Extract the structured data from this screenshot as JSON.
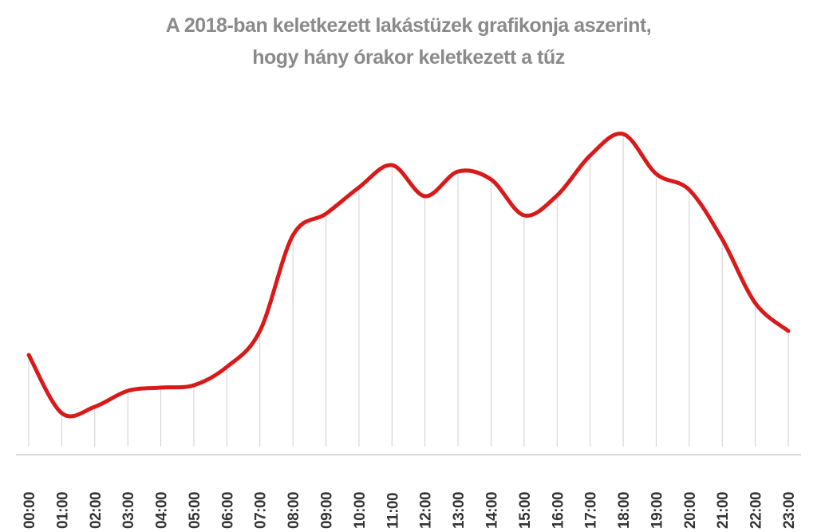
{
  "chart_data": {
    "type": "line",
    "title_lines": [
      "A 2018-ban keletkezett lakástüzek grafikonja aszerint,",
      "hogy hány órakor keletkezett a tűz"
    ],
    "categories": [
      "00:00",
      "01:00",
      "02:00",
      "03:00",
      "04:00",
      "05:00",
      "06:00",
      "07:00",
      "08:00",
      "09:00",
      "10:00",
      "11:00",
      "12:00",
      "13:00",
      "14:00",
      "15:00",
      "16:00",
      "17:00",
      "18:00",
      "19:00",
      "20:00",
      "21:00",
      "22:00",
      "23:00"
    ],
    "values": [
      115,
      42,
      50,
      70,
      74,
      77,
      100,
      145,
      265,
      292,
      325,
      353,
      314,
      345,
      335,
      290,
      315,
      365,
      392,
      342,
      322,
      260,
      180,
      145
    ],
    "color": "#d91a1a"
  }
}
